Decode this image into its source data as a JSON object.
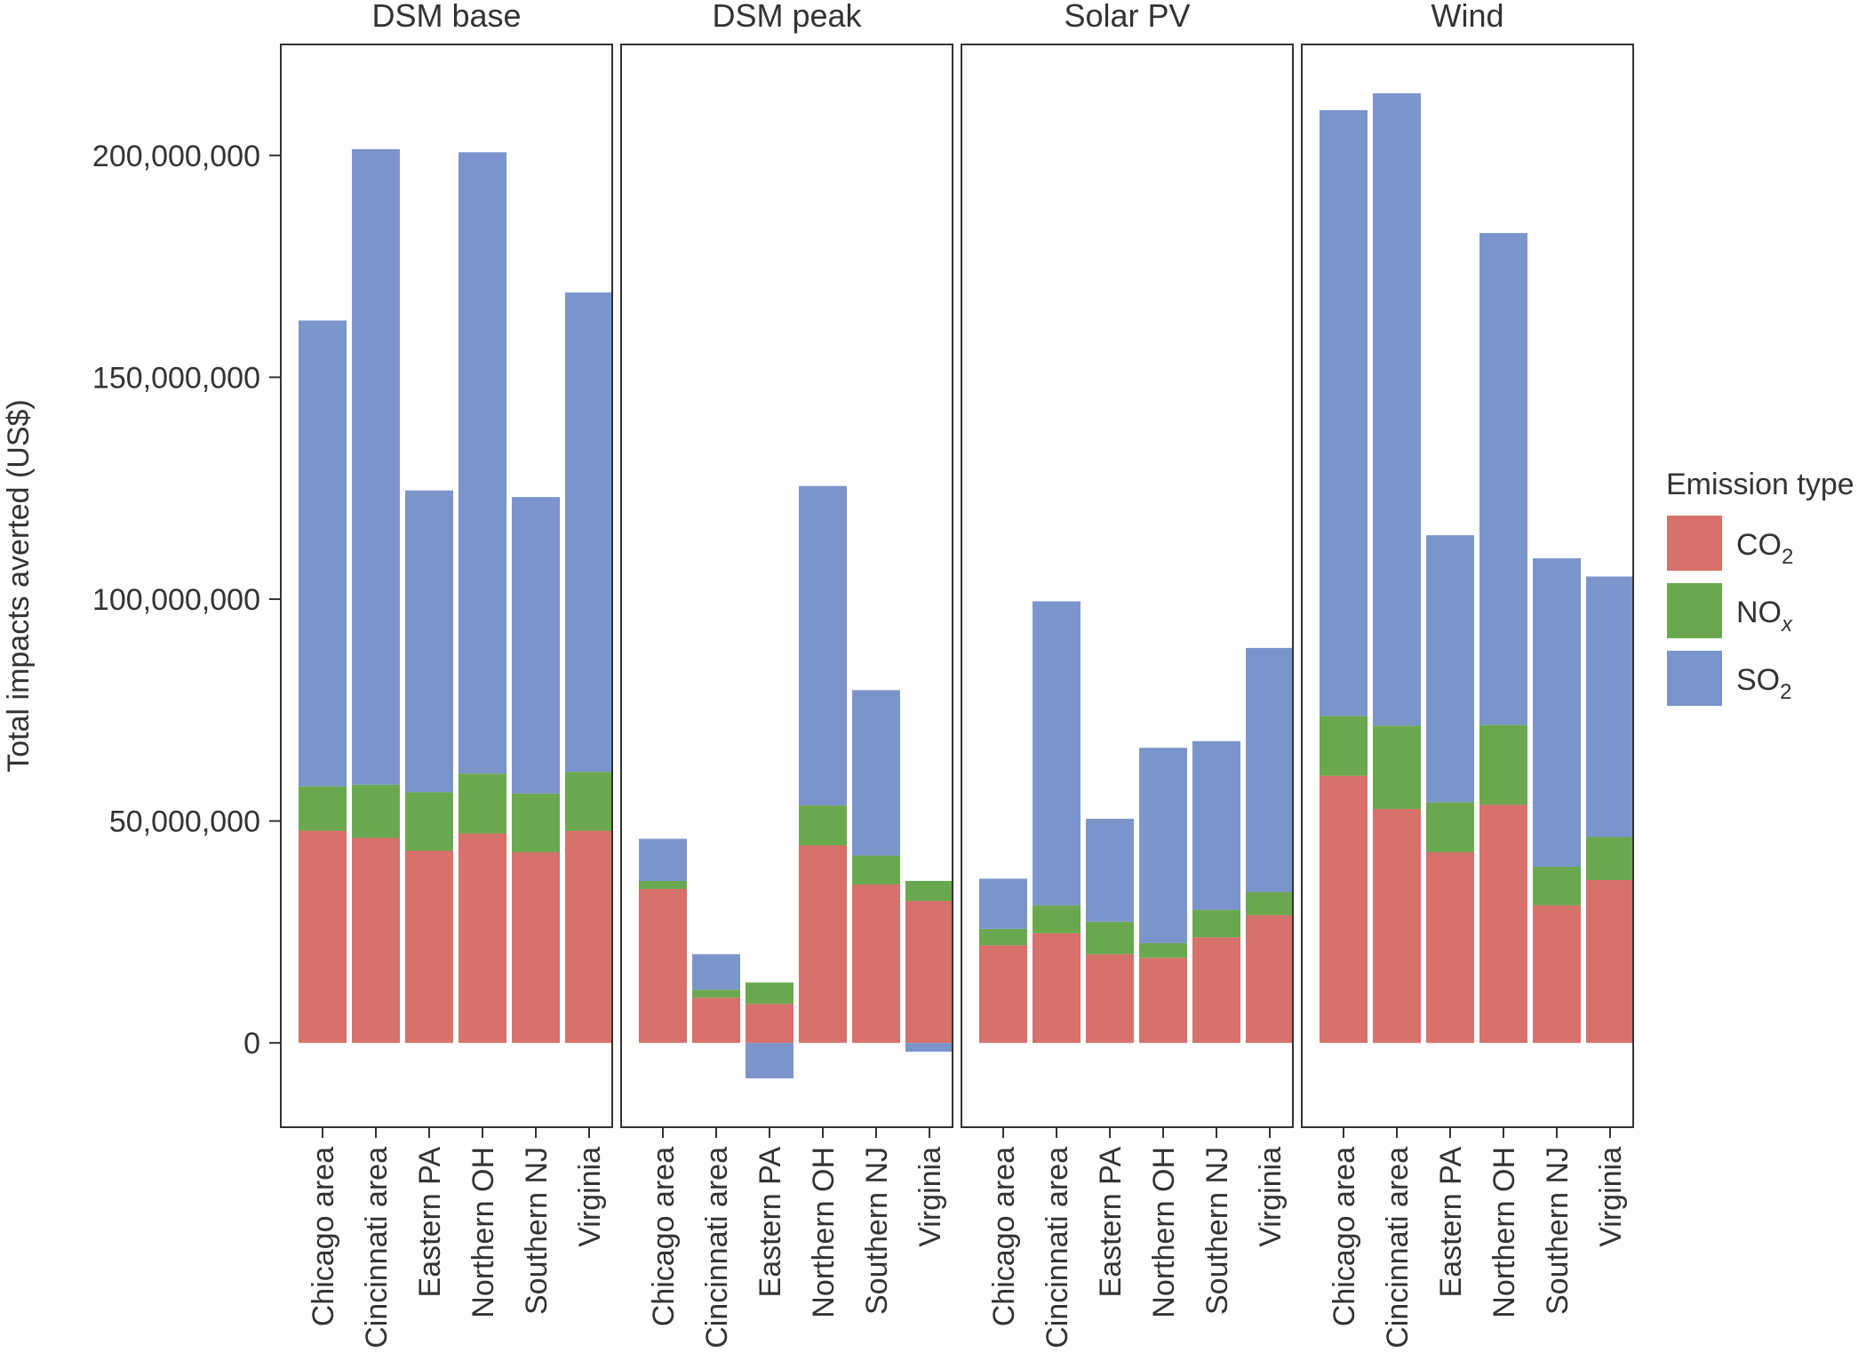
{
  "chart_data": {
    "type": "bar",
    "stacked": true,
    "ylabel": "Total impacts averted (US$)",
    "ylim": [
      -19000000,
      225000000
    ],
    "yticks": [
      0,
      50000000,
      100000000,
      150000000,
      200000000
    ],
    "ytick_labels": [
      "0",
      "50,000,000",
      "100,000,000",
      "150,000,000",
      "200,000,000"
    ],
    "grid": false,
    "categories": [
      "Chicago area",
      "Cincinnati area",
      "Eastern PA",
      "Northern OH",
      "Southern NJ",
      "Virginia"
    ],
    "panels": [
      {
        "label": "DSM base",
        "series": [
          {
            "key": "co2",
            "values": [
              47800000,
              46200000,
              43300000,
              47200000,
              43000000,
              47800000
            ]
          },
          {
            "key": "nox",
            "values": [
              10000000,
              12000000,
              13200000,
              13500000,
              13200000,
              13300000
            ]
          },
          {
            "key": "so2",
            "values": [
              105000000,
              143200000,
              68000000,
              140000000,
              66800000,
              108000000
            ]
          }
        ]
      },
      {
        "label": "DSM peak",
        "series": [
          {
            "key": "co2",
            "values": [
              34700000,
              10200000,
              8800000,
              44500000,
              35700000,
              32000000
            ]
          },
          {
            "key": "nox",
            "values": [
              1800000,
              1800000,
              4800000,
              9000000,
              6500000,
              4500000
            ]
          },
          {
            "key": "so2",
            "values": [
              9500000,
              8000000,
              -8000000,
              72000000,
              37300000,
              -2000000
            ]
          }
        ]
      },
      {
        "label": "Solar PV",
        "series": [
          {
            "key": "co2",
            "values": [
              22000000,
              24700000,
              20000000,
              19200000,
              23800000,
              28800000
            ]
          },
          {
            "key": "nox",
            "values": [
              3700000,
              6300000,
              7300000,
              3300000,
              6200000,
              5200000
            ]
          },
          {
            "key": "so2",
            "values": [
              11300000,
              68500000,
              23200000,
              44000000,
              38000000,
              55000000
            ]
          }
        ]
      },
      {
        "label": "Wind",
        "series": [
          {
            "key": "co2",
            "values": [
              60200000,
              52700000,
              43000000,
              53700000,
              31000000,
              36700000
            ]
          },
          {
            "key": "nox",
            "values": [
              13500000,
              18800000,
              11200000,
              18000000,
              8700000,
              9700000
            ]
          },
          {
            "key": "so2",
            "values": [
              136500000,
              142500000,
              60200000,
              110800000,
              69500000,
              58700000
            ]
          }
        ]
      }
    ],
    "legend": {
      "title": "Emission type",
      "placement": "right",
      "entries": [
        {
          "key": "co2",
          "base": "CO",
          "sub": "2",
          "sub_italic": false,
          "color": "#d6716b"
        },
        {
          "key": "nox",
          "base": "NO",
          "sub": "x",
          "sub_italic": true,
          "color": "#6aa84f"
        },
        {
          "key": "so2",
          "base": "SO",
          "sub": "2",
          "sub_italic": false,
          "color": "#7b95cc"
        }
      ]
    }
  }
}
